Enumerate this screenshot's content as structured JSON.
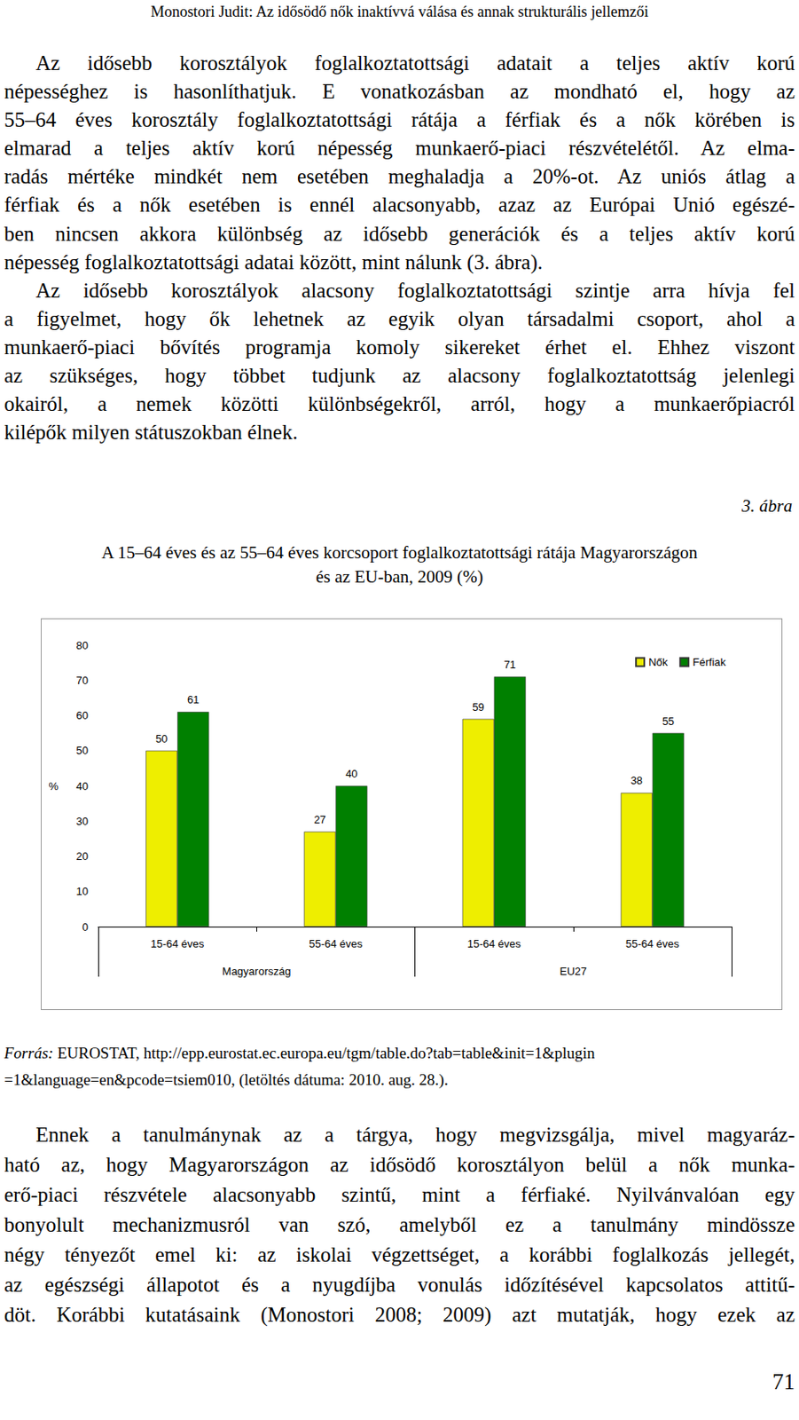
{
  "header": "Monostori Judit: Az idősödő nők inaktívvá válása és annak strukturális jellemzői",
  "text_before": [
    [
      "Az idősebb korosztályok foglalkoztatottsági adatait a teljes aktív korú",
      "népességhez is hasonlíthatjuk. E vonatkozásban az mondható el, hogy az",
      "55–64 éves korosztály foglalkoztatottsági rátája a férfiak és a nők körében is",
      "elmarad a teljes aktív korú népesség munkaerő-piaci részvételétől. Az elma-",
      "radás mértéke mindkét nem esetében meghaladja a 20%-ot. Az uniós átlag a",
      "férfiak és a nők esetében is ennél alacsonyabb, azaz az Európai Unió egészé-",
      "ben nincsen akkora különbség az idősebb generációk és a teljes aktív korú",
      "népesség foglalkoztatottsági adatai között, mint nálunk (3. ábra)."
    ],
    [
      "Az idősebb korosztályok alacsony foglalkoztatottsági szintje arra hívja fel",
      "a figyelmet, hogy ők lehetnek az egyik olyan társadalmi csoport, ahol a",
      "munkaerő-piaci bővítés programja komoly sikereket érhet el. Ehhez viszont",
      "az szükséges, hogy többet tudjunk az alacsony foglalkoztatottság jelenlegi",
      "okairól, a nemek közötti különbségekről, arról, hogy a munkaerőpiacról",
      "kilépők milyen státuszokban élnek."
    ]
  ],
  "figure": {
    "label": "3. ábra",
    "caption": [
      "A 15–64 éves és az 55–64 éves korcsoport foglalkoztatottsági rátája Magyarországon",
      "és az EU-ban, 2009 (%)"
    ],
    "source_label": "Forrás:",
    "source": [
      " EUROSTAT, http://epp.eurostat.ec.europa.eu/tgm/table.do?tab=table&init=1&plugin",
      "=1&language=en&pcode=tsiem010, (letöltés dátuma: 2010. aug. 28.)."
    ]
  },
  "text_after": [
    [
      "Ennek a tanulmánynak az a tárgya, hogy megvizsgálja, mivel magyaráz-",
      "ható az, hogy Magyarországon az idősödő korosztályon belül a nők munka-",
      "erő-piaci részvétele alacsonyabb szintű, mint a férfiaké. Nyilvánvalóan egy",
      "bonyolult mechanizmusról van szó, amelyből ez a tanulmány mindössze",
      "négy tényezőt emel ki: az iskolai végzettséget, a korábbi foglalkozás jellegét,",
      "az egészségi állapotot és a nyugdíjba vonulás időzítésével kapcsolatos attitű-",
      "döt. Korábbi kutatásaink (Monostori 2008; 2009) azt mutatják, hogy ezek az"
    ]
  ],
  "page_number": "71",
  "chart_data": {
    "type": "bar",
    "categories": [
      "15-64 éves",
      "55-64 éves",
      "15-64 éves",
      "55-64 éves"
    ],
    "group_labels": [
      "Magyarország",
      "EU27"
    ],
    "series": [
      {
        "name": "Nők",
        "color": "#eeee00",
        "values": [
          50,
          27,
          59,
          38
        ]
      },
      {
        "name": "Férfiak",
        "color": "#008000",
        "values": [
          61,
          40,
          71,
          55
        ]
      }
    ],
    "y_label": "%",
    "ylim": [
      0,
      80
    ],
    "yticks": [
      0,
      10,
      20,
      30,
      40,
      50,
      60,
      70,
      80
    ],
    "grid": false,
    "legend": "upper right",
    "data_labels": true
  }
}
